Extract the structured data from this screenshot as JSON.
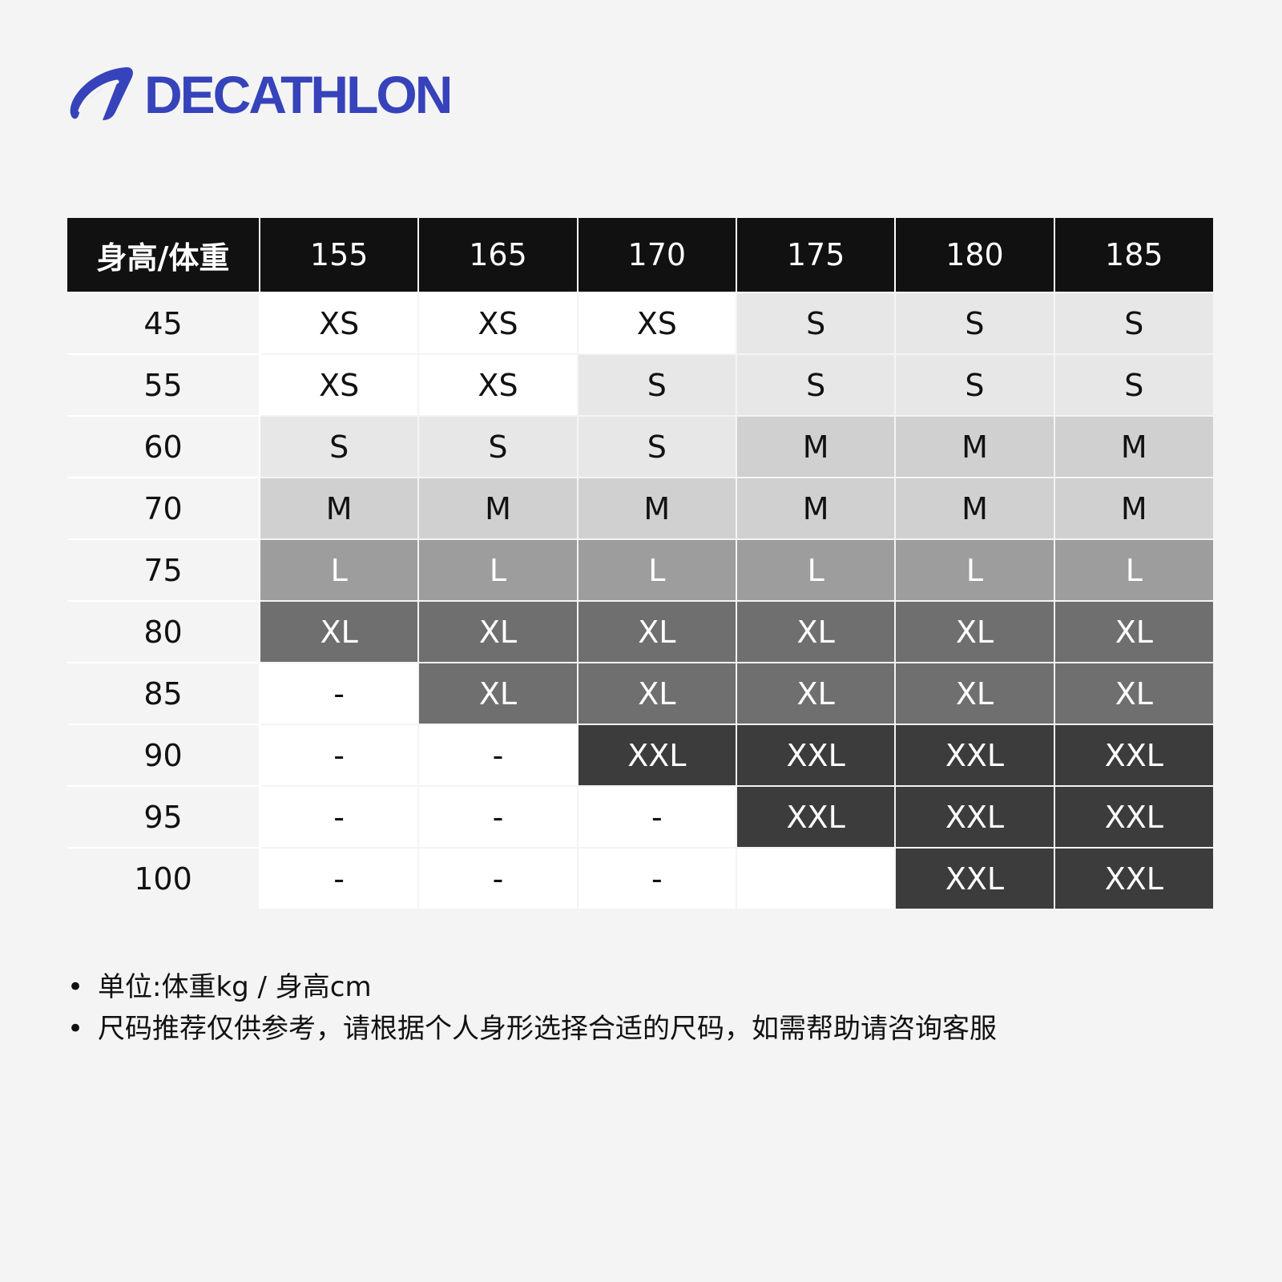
{
  "brand": {
    "name": "DECATHLON",
    "color": "#3643ba"
  },
  "table": {
    "corner_label": "身高/体重",
    "heights": [
      "155",
      "165",
      "170",
      "175",
      "180",
      "185"
    ],
    "rows": [
      {
        "weight": "45",
        "sizes": [
          "XS",
          "XS",
          "XS",
          "S",
          "S",
          "S"
        ]
      },
      {
        "weight": "55",
        "sizes": [
          "XS",
          "XS",
          "S",
          "S",
          "S",
          "S"
        ]
      },
      {
        "weight": "60",
        "sizes": [
          "S",
          "S",
          "S",
          "M",
          "M",
          "M"
        ]
      },
      {
        "weight": "70",
        "sizes": [
          "M",
          "M",
          "M",
          "M",
          "M",
          "M"
        ]
      },
      {
        "weight": "75",
        "sizes": [
          "L",
          "L",
          "L",
          "L",
          "L",
          "L"
        ]
      },
      {
        "weight": "80",
        "sizes": [
          "XL",
          "XL",
          "XL",
          "XL",
          "XL",
          "XL"
        ]
      },
      {
        "weight": "85",
        "sizes": [
          "-",
          "XL",
          "XL",
          "XL",
          "XL",
          "XL"
        ]
      },
      {
        "weight": "90",
        "sizes": [
          "-",
          "-",
          "XXL",
          "XXL",
          "XXL",
          "XXL"
        ]
      },
      {
        "weight": "95",
        "sizes": [
          "-",
          "-",
          "-",
          "XXL",
          "XXL",
          "XXL"
        ]
      },
      {
        "weight": "100",
        "sizes": [
          "-",
          "-",
          "-",
          "",
          "XXL",
          "XXL"
        ]
      }
    ],
    "colors": {
      "header_bg": "#111111",
      "header_text": "#ffffff",
      "XS": "#ffffff",
      "S": "#e7e7e7",
      "M": "#d0d0d0",
      "L": "#9d9d9d",
      "XL": "#6f6f6f",
      "XXL": "#3c3c3c",
      "empty": "#ffffff"
    }
  },
  "notes": [
    "单位:体重kg / 身高cm",
    "尺码推荐仅供参考，请根据个人身形选择合适的尺码，如需帮助请咨询客服"
  ]
}
